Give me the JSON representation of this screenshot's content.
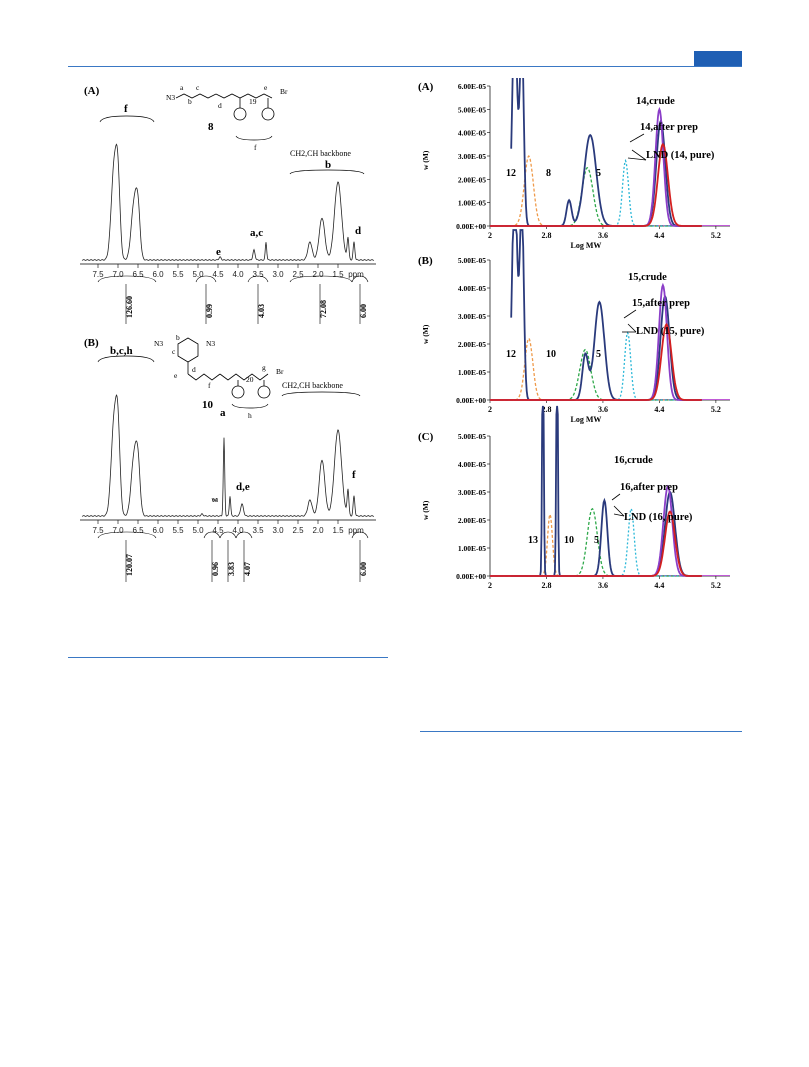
{
  "page": {
    "accent": "#1f5fb4"
  },
  "nmr": {
    "panel_a": {
      "label": "(A)",
      "compound": "8",
      "structure": {
        "n": "19",
        "labels": [
          "a",
          "b",
          "c",
          "d",
          "e",
          "f"
        ],
        "n3": "N3",
        "br": "Br"
      },
      "annotation_backbone": "CH2,CH backbone",
      "peak_labels": [
        "f",
        "b",
        "e",
        "a,c",
        "d"
      ],
      "x_ticks": [
        "7.5",
        "7.0",
        "6.5",
        "6.0",
        "5.5",
        "5.0",
        "4.5",
        "4.0",
        "3.5",
        "3.0",
        "2.5",
        "2.0",
        "1.5",
        "ppm"
      ],
      "integrals": [
        "126.60",
        "0.99",
        "4.03",
        "72.08",
        "6.00"
      ]
    },
    "panel_b": {
      "label": "(B)",
      "compound": "10",
      "structure": {
        "n": "20",
        "labels": [
          "b",
          "c",
          "d",
          "e",
          "f",
          "g",
          "h"
        ],
        "n3": "N3",
        "br": "Br"
      },
      "annotation_backbone": "CH2,CH backbone",
      "peak_labels": [
        "b,c,h",
        "a",
        "g",
        "d,e",
        "f"
      ],
      "x_ticks": [
        "7.5",
        "7.0",
        "6.5",
        "6.0",
        "5.5",
        "5.0",
        "4.5",
        "4.0",
        "3.5",
        "3.0",
        "2.5",
        "2.0",
        "1.5",
        "ppm"
      ],
      "integrals": [
        "120.07",
        "0.96",
        "3.83",
        "4.07",
        "6.00"
      ]
    }
  },
  "chart_data": [
    {
      "type": "line",
      "label": "(A)",
      "ylabel": "w (M)",
      "xlabel": "Log MW",
      "x_ticks": [
        "2",
        "2.8",
        "3.6",
        "4.4",
        "5.2"
      ],
      "y_ticks": [
        "0.00E+00",
        "1.00E-05",
        "2.00E-05",
        "3.00E-05",
        "4.00E-05",
        "5.00E-05",
        "6.00E-05"
      ],
      "xlim": [
        2,
        5.4
      ],
      "ylim": [
        0,
        6e-05
      ],
      "annotations": [
        "14,crude",
        "14,after prep",
        "LND (14, pure)",
        "12",
        "8",
        "5"
      ],
      "series": [
        {
          "color": "#ef9a4a",
          "dash": "3,2",
          "peaks": [
            [
              2.55,
              3e-05,
              0.09
            ]
          ]
        },
        {
          "color": "#2ea84a",
          "dash": "3,2",
          "peaks": [
            [
              3.38,
              2.5e-05,
              0.11
            ]
          ]
        },
        {
          "color": "#2bb8d8",
          "dash": "2,2",
          "peaks": [
            [
              3.92,
              2.8e-05,
              0.06
            ]
          ]
        },
        {
          "color": "#2a3a7c",
          "dash": "",
          "peaks": [
            [
              2.35,
              9e-05,
              0.05
            ],
            [
              2.45,
              8e-05,
              0.04
            ],
            [
              3.12,
              1.1e-05,
              0.05
            ],
            [
              3.42,
              3.9e-05,
              0.12
            ],
            [
              4.42,
              4.5e-05,
              0.09
            ]
          ]
        },
        {
          "color": "#8b3ec8",
          "dash": "",
          "peaks": [
            [
              4.4,
              5e-05,
              0.08
            ]
          ]
        },
        {
          "color": "#d42020",
          "dash": "",
          "peaks": [
            [
              4.45,
              3.5e-05,
              0.1
            ]
          ]
        }
      ]
    },
    {
      "type": "line",
      "label": "(B)",
      "ylabel": "w (M)",
      "xlabel": "Log MW",
      "x_ticks": [
        "2",
        "2.8",
        "3.6",
        "4.4",
        "5.2"
      ],
      "y_ticks": [
        "0.00E+00",
        "1.00E-05",
        "2.00E-05",
        "3.00E-05",
        "4.00E-05",
        "5.00E-05"
      ],
      "xlim": [
        2,
        5.4
      ],
      "ylim": [
        0,
        5e-05
      ],
      "annotations": [
        "15,crude",
        "15,after prep",
        "LND (15, pure)",
        "12",
        "10",
        "5"
      ],
      "series": [
        {
          "color": "#ef9a4a",
          "dash": "3,2",
          "peaks": [
            [
              2.55,
              2.2e-05,
              0.08
            ]
          ]
        },
        {
          "color": "#2ea84a",
          "dash": "3,2",
          "peaks": [
            [
              3.35,
              1.8e-05,
              0.11
            ]
          ]
        },
        {
          "color": "#2bb8d8",
          "dash": "2,2",
          "peaks": [
            [
              3.95,
              2.4e-05,
              0.06
            ]
          ]
        },
        {
          "color": "#2a3a7c",
          "dash": "",
          "peaks": [
            [
              2.35,
              8e-05,
              0.05
            ],
            [
              2.45,
              7e-05,
              0.04
            ],
            [
              3.35,
              1.6e-05,
              0.06
            ],
            [
              3.55,
              3.5e-05,
              0.1
            ],
            [
              4.48,
              3.7e-05,
              0.09
            ]
          ]
        },
        {
          "color": "#8b3ec8",
          "dash": "",
          "peaks": [
            [
              4.45,
              4.1e-05,
              0.08
            ]
          ]
        },
        {
          "color": "#d42020",
          "dash": "",
          "peaks": [
            [
              4.5,
              2.7e-05,
              0.1
            ]
          ]
        }
      ]
    },
    {
      "type": "line",
      "label": "(C)",
      "ylabel": "w (M)",
      "xlabel": "",
      "x_ticks": [
        "2",
        "2.8",
        "3.6",
        "4.4",
        "5.2"
      ],
      "y_ticks": [
        "0.00E+00",
        "1.00E-05",
        "2.00E-05",
        "3.00E-05",
        "4.00E-05",
        "5.00E-05"
      ],
      "xlim": [
        2,
        5.4
      ],
      "ylim": [
        0,
        5e-05
      ],
      "annotations": [
        "16,crude",
        "16,after prep",
        "LND (16, pure)",
        "13",
        "10",
        "5"
      ],
      "series": [
        {
          "color": "#ef9a4a",
          "dash": "3,2",
          "peaks": [
            [
              2.85,
              2.2e-05,
              0.05
            ]
          ]
        },
        {
          "color": "#2ea84a",
          "dash": "3,2",
          "peaks": [
            [
              3.45,
              2.4e-05,
              0.1
            ]
          ]
        },
        {
          "color": "#2bb8d8",
          "dash": "2,2",
          "peaks": [
            [
              4.0,
              2.4e-05,
              0.06
            ]
          ]
        },
        {
          "color": "#2a3a7c",
          "dash": "",
          "peaks": [
            [
              2.75,
              9e-05,
              0.015
            ],
            [
              2.95,
              9e-05,
              0.015
            ],
            [
              3.62,
              2.7e-05,
              0.06
            ],
            [
              4.55,
              3e-05,
              0.1
            ]
          ]
        },
        {
          "color": "#8b3ec8",
          "dash": "",
          "peaks": [
            [
              4.52,
              3.2e-05,
              0.09
            ]
          ]
        },
        {
          "color": "#d42020",
          "dash": "",
          "peaks": [
            [
              4.55,
              2.3e-05,
              0.1
            ]
          ]
        }
      ]
    }
  ]
}
